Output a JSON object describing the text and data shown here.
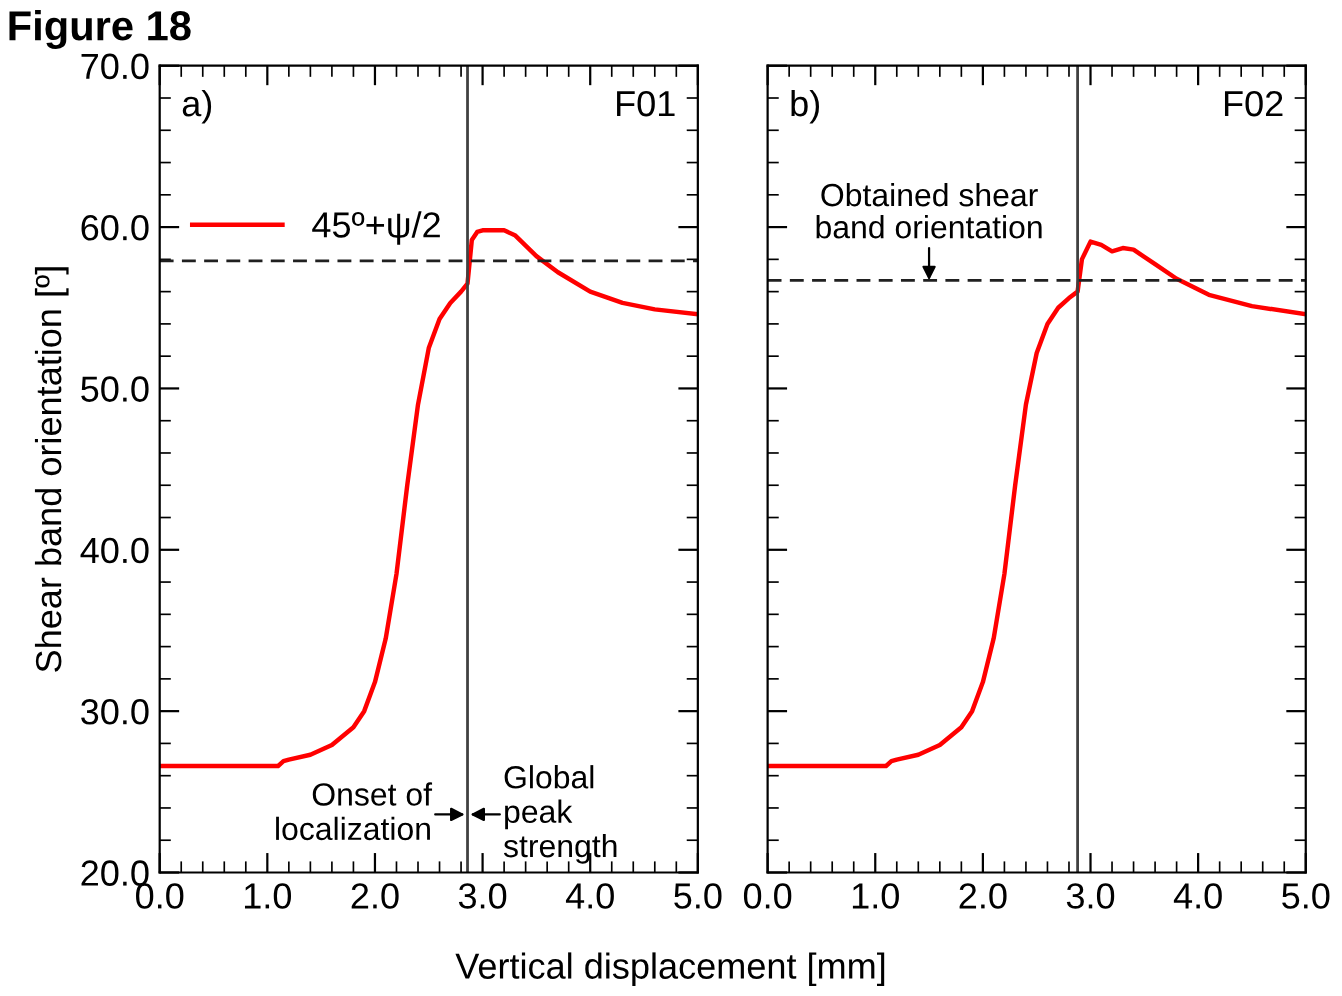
{
  "chart_data": [
    {
      "type": "line",
      "title": "Figure 18",
      "xlabel": "Vertical displacement [mm]",
      "ylabel": "Shear band orientation [º]",
      "annotations": [
        "a)",
        "F01",
        "Onset of localization",
        "Global peak strength"
      ],
      "series": [
        {
          "name": "45º+ψ/2",
          "color": "#ff0000",
          "x": [
            0,
            1.1,
            1.15,
            1.2,
            1.4,
            1.6,
            1.8,
            1.9,
            2.0,
            2.1,
            2.2,
            2.3,
            2.4,
            2.5,
            2.6,
            2.7,
            2.8,
            2.86,
            2.9,
            2.95,
            3.0,
            3.1,
            3.2,
            3.3,
            3.5,
            3.7,
            4.0,
            4.3,
            4.6,
            5.0
          ],
          "values": [
            26.6,
            26.6,
            26.9,
            27.0,
            27.3,
            27.9,
            29.0,
            30.0,
            31.8,
            34.5,
            38.5,
            44.0,
            49.0,
            52.5,
            54.3,
            55.3,
            56.0,
            56.5,
            59.2,
            59.7,
            59.8,
            59.8,
            59.8,
            59.5,
            58.2,
            57.2,
            56.0,
            55.3,
            54.9,
            54.6
          ]
        }
      ],
      "ref_lines": [
        {
          "axis": "x",
          "value": 2.86,
          "color": "#404040",
          "line_style": "solid"
        },
        {
          "axis": "y",
          "value": 57.9,
          "color": "#202020",
          "line_style": "dashed"
        }
      ],
      "xlim": [
        0,
        5
      ],
      "xticks": [
        {
          "value": 0,
          "label": "0.0"
        },
        {
          "value": 1,
          "label": "1.0"
        },
        {
          "value": 2,
          "label": "2.0"
        },
        {
          "value": 3,
          "label": "3.0"
        },
        {
          "value": 4,
          "label": "4.0"
        },
        {
          "value": 5,
          "label": "5.0"
        }
      ],
      "ylim": [
        20,
        70
      ],
      "yticks": [
        {
          "value": 20,
          "label": "20.0"
        },
        {
          "value": 30,
          "label": "30.0"
        },
        {
          "value": 40,
          "label": "40.0"
        },
        {
          "value": 50,
          "label": "50.0"
        },
        {
          "value": 60,
          "label": "60.0"
        },
        {
          "value": 70,
          "label": "70.0"
        }
      ],
      "legend": "top left",
      "grid": false,
      "marker": "none",
      "line_style": "solid"
    },
    {
      "type": "line",
      "annotations": [
        "b)",
        "F02",
        "Obtained shear band orientation"
      ],
      "series": [
        {
          "color": "#ff0000",
          "x": [
            0,
            1.1,
            1.15,
            1.2,
            1.4,
            1.6,
            1.8,
            1.9,
            2.0,
            2.1,
            2.2,
            2.3,
            2.4,
            2.5,
            2.6,
            2.7,
            2.8,
            2.88,
            2.92,
            3.0,
            3.1,
            3.2,
            3.3,
            3.4,
            3.6,
            3.8,
            4.1,
            4.5,
            5.0
          ],
          "values": [
            26.6,
            26.6,
            26.9,
            27.0,
            27.3,
            27.9,
            29.0,
            30.0,
            31.8,
            34.5,
            38.5,
            44.0,
            49.0,
            52.2,
            54.0,
            55.0,
            55.6,
            56.0,
            58.0,
            59.1,
            58.9,
            58.5,
            58.7,
            58.6,
            57.7,
            56.8,
            55.8,
            55.1,
            54.6
          ]
        }
      ],
      "ref_lines": [
        {
          "axis": "x",
          "value": 2.88,
          "color": "#404040",
          "line_style": "solid"
        },
        {
          "axis": "y",
          "value": 56.7,
          "color": "#202020",
          "line_style": "dashed"
        }
      ],
      "xlim": [
        0,
        5
      ],
      "xticks": [
        {
          "value": 0,
          "label": "0.0"
        },
        {
          "value": 1,
          "label": "1.0"
        },
        {
          "value": 2,
          "label": "2.0"
        },
        {
          "value": 3,
          "label": "3.0"
        },
        {
          "value": 4,
          "label": "4.0"
        },
        {
          "value": 5,
          "label": "5.0"
        }
      ],
      "ylim": [
        20,
        70
      ],
      "yticks": [
        {
          "value": 20,
          "label": null
        },
        {
          "value": 30,
          "label": null
        },
        {
          "value": 40,
          "label": null
        },
        {
          "value": 50,
          "label": null
        },
        {
          "value": 60,
          "label": null
        },
        {
          "value": 70,
          "label": null
        }
      ],
      "tick_labels": "x",
      "legend": false,
      "grid": false,
      "marker": "none",
      "line_style": "solid"
    }
  ]
}
